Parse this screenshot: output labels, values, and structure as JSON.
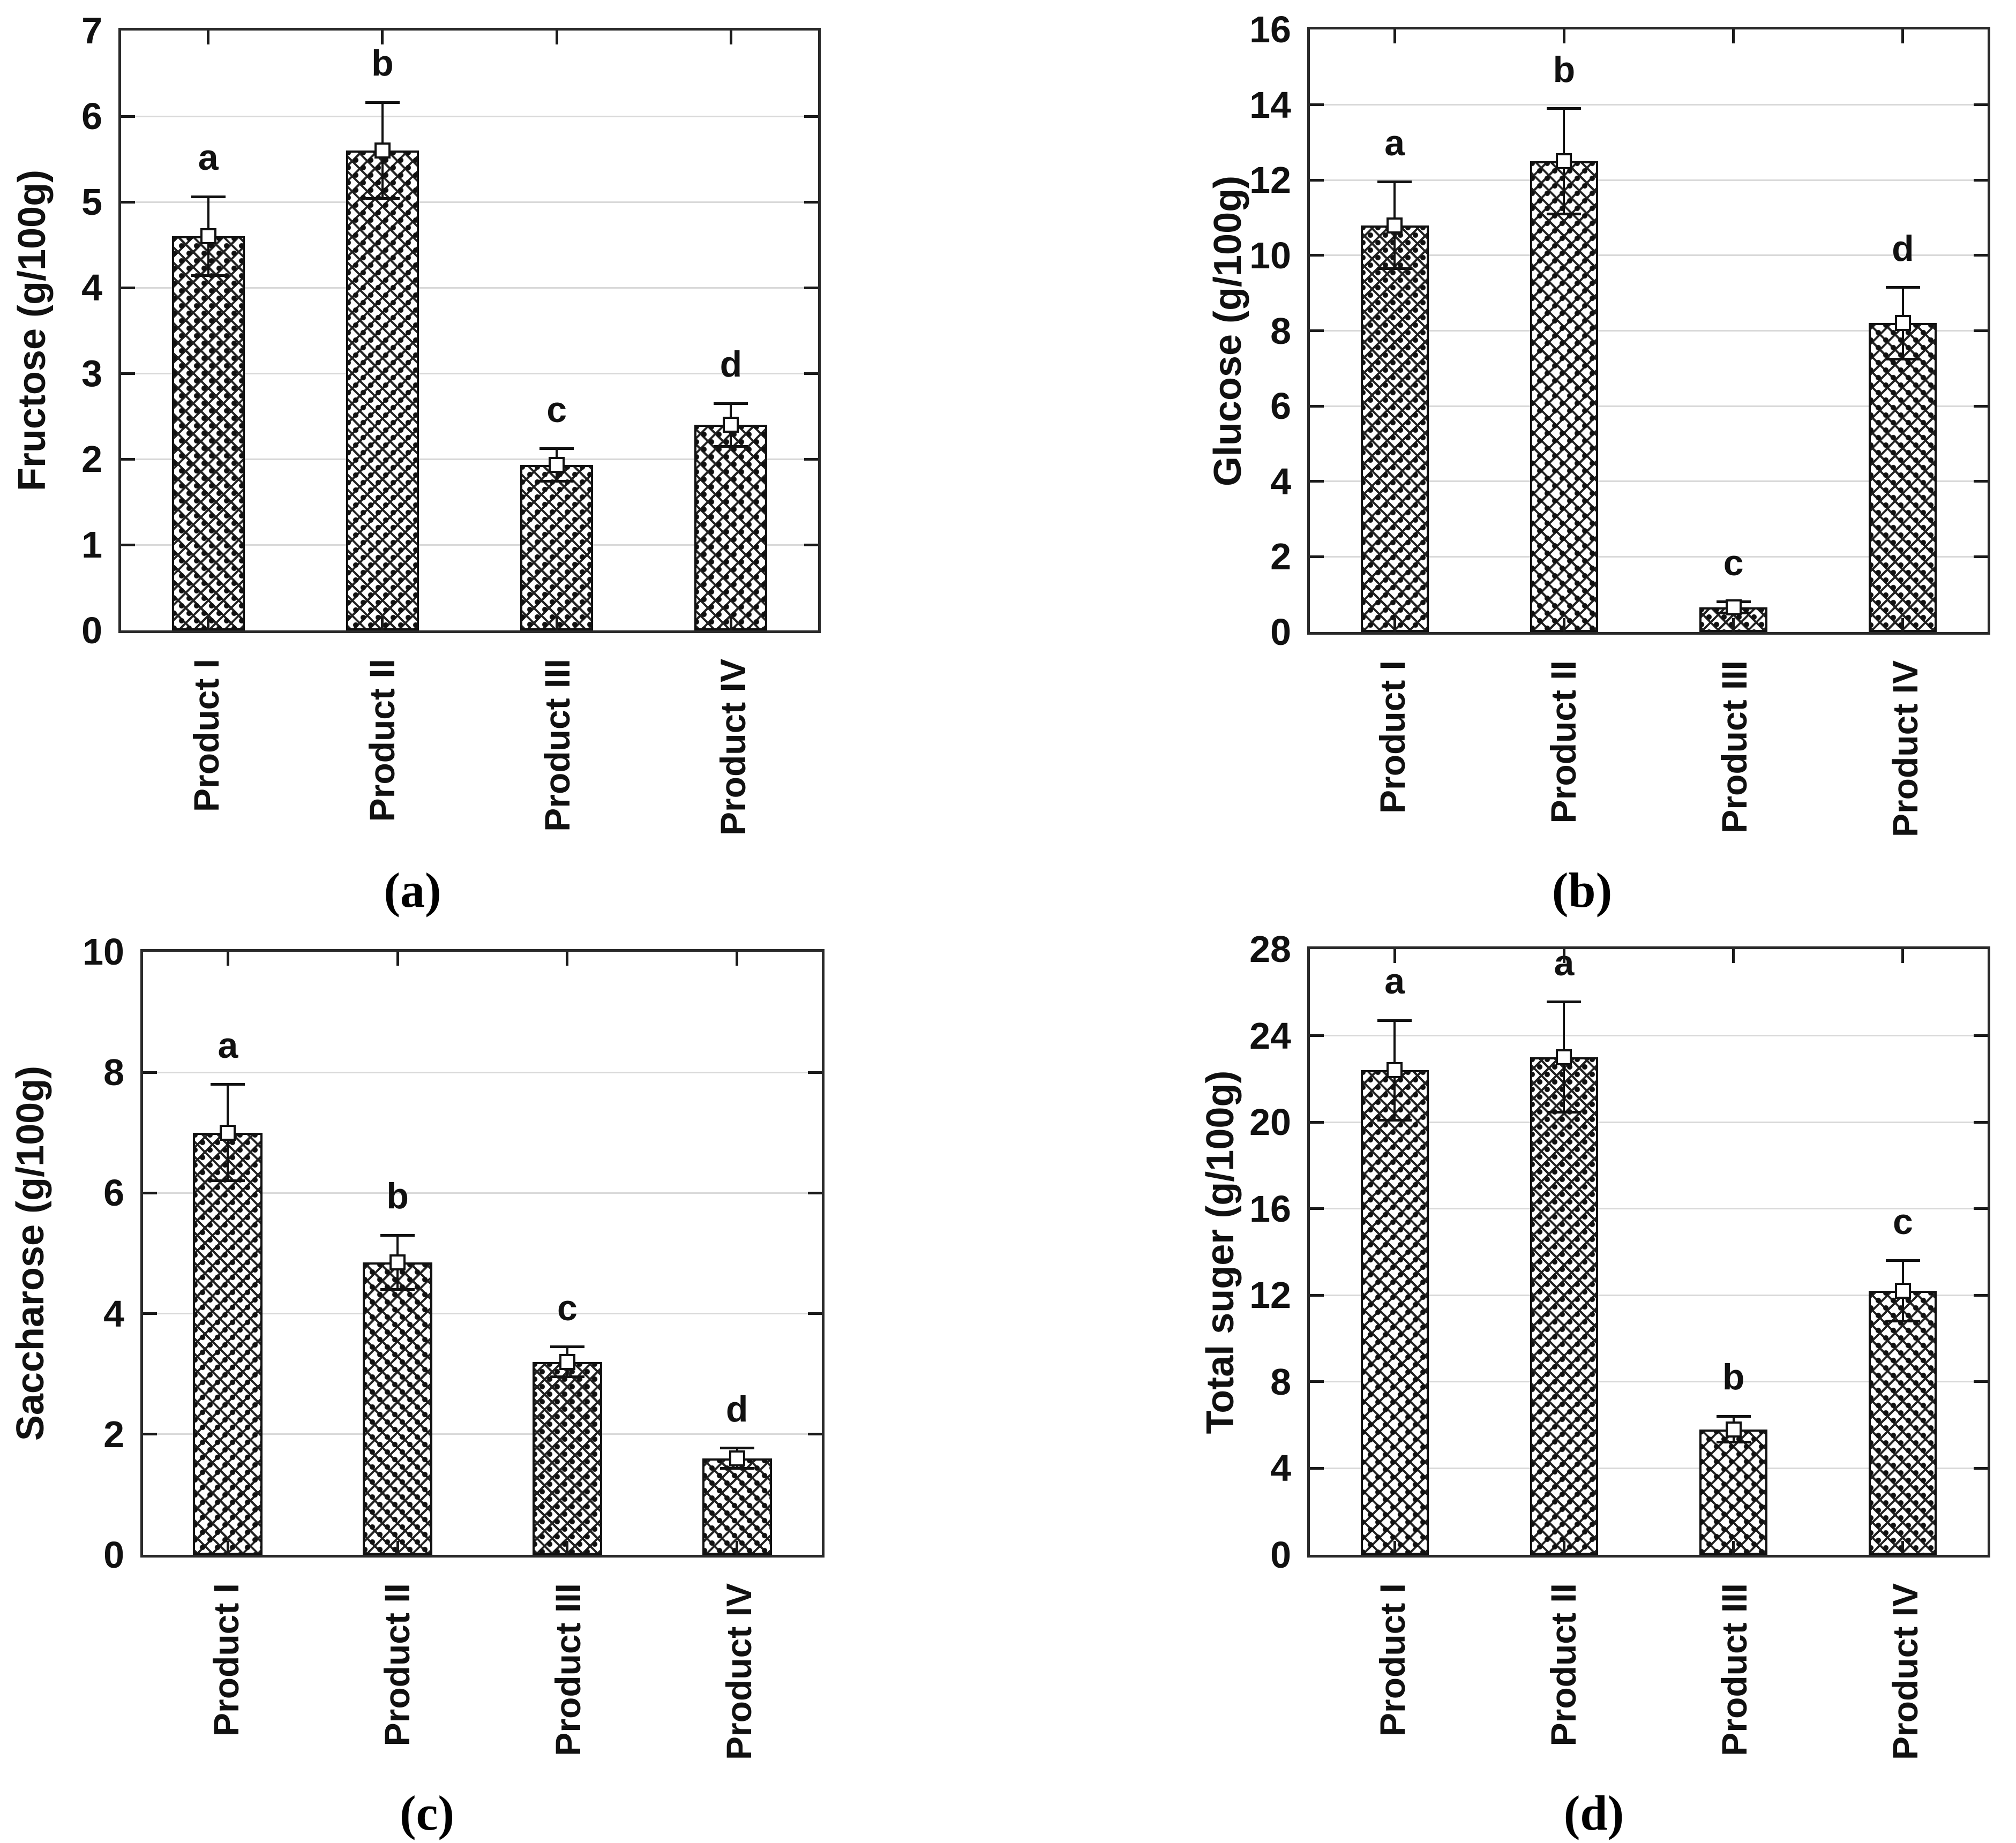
{
  "figure": {
    "background": "#ffffff",
    "text_color": "#111111",
    "grid_color": "#d9d9d9",
    "axis_color": "#2a2a2a",
    "bar_fill": "#ffffff",
    "bar_pattern": "black diagonal crosshatch with dots",
    "mean_marker": "open-square",
    "error_bar_style": "vertical whisker with caps",
    "panel_labels": [
      "(a)",
      "(b)",
      "(c)",
      "(d)"
    ]
  },
  "chart_data": [
    {
      "type": "bar",
      "panel_label": "(a)",
      "title": "",
      "xlabel": "",
      "ylabel": "Fructose (g/100g)",
      "categories": [
        "Product I",
        "Product II",
        "Product III",
        "Product IV"
      ],
      "values": [
        4.6,
        5.6,
        1.93,
        2.4
      ],
      "errors": [
        0.46,
        0.56,
        0.19,
        0.25
      ],
      "sig_letters": [
        "a",
        "b",
        "c",
        "d"
      ],
      "ylim": [
        0,
        7
      ],
      "ytick_step": 1,
      "yticks": [
        0,
        1,
        2,
        3,
        4,
        5,
        6,
        7
      ],
      "grid": true,
      "legend": "none"
    },
    {
      "type": "bar",
      "panel_label": "(b)",
      "title": "",
      "xlabel": "",
      "ylabel": "Glucose (g/100g)",
      "categories": [
        "Product I",
        "Product II",
        "Product III",
        "Product IV"
      ],
      "values": [
        10.8,
        12.5,
        0.65,
        8.2
      ],
      "errors": [
        1.15,
        1.4,
        0.15,
        0.95
      ],
      "sig_letters": [
        "a",
        "b",
        "c",
        "d"
      ],
      "ylim": [
        0,
        16
      ],
      "ytick_step": 2,
      "yticks": [
        0,
        2,
        4,
        6,
        8,
        10,
        12,
        14,
        16
      ],
      "grid": true,
      "legend": "none"
    },
    {
      "type": "bar",
      "panel_label": "(c)",
      "title": "",
      "xlabel": "",
      "ylabel": "Saccharose (g/100g)",
      "categories": [
        "Product I",
        "Product II",
        "Product III",
        "Product IV"
      ],
      "values": [
        7.0,
        4.85,
        3.2,
        1.6
      ],
      "errors": [
        0.8,
        0.45,
        0.25,
        0.17
      ],
      "sig_letters": [
        "a",
        "b",
        "c",
        "d"
      ],
      "ylim": [
        0,
        10
      ],
      "ytick_step": 2,
      "yticks": [
        0,
        2,
        4,
        6,
        8,
        10
      ],
      "grid": true,
      "legend": "none"
    },
    {
      "type": "bar",
      "panel_label": "(d)",
      "title": "",
      "xlabel": "",
      "ylabel": "Total suger (g/100g)",
      "categories": [
        "Product I",
        "Product II",
        "Product III",
        "Product IV"
      ],
      "values": [
        22.4,
        23.0,
        5.8,
        12.2
      ],
      "errors": [
        2.3,
        2.55,
        0.6,
        1.4
      ],
      "sig_letters": [
        "a",
        "a",
        "b",
        "c"
      ],
      "ylim": [
        0,
        28
      ],
      "ytick_step": 4,
      "yticks": [
        0,
        4,
        8,
        12,
        16,
        20,
        24,
        28
      ],
      "grid": true,
      "legend": "none"
    }
  ]
}
